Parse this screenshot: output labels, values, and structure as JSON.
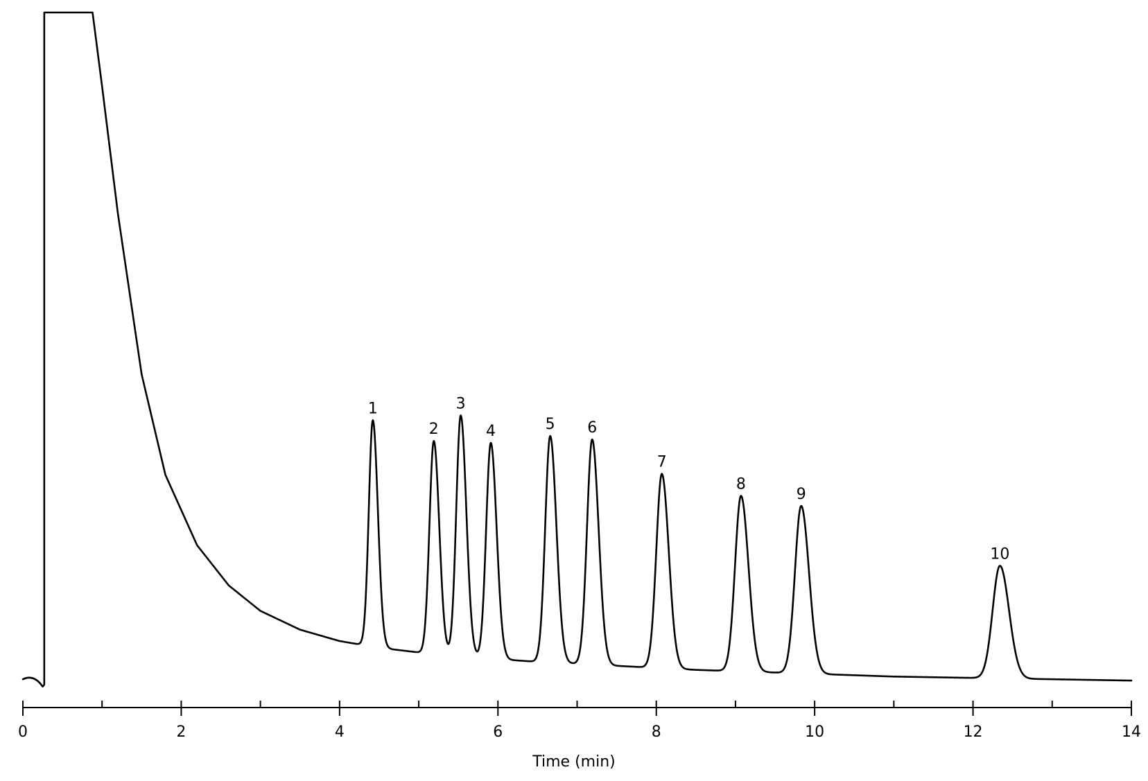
{
  "chart_data": {
    "type": "line",
    "title": "",
    "xlabel": "Time (min)",
    "ylabel": "",
    "xlim": [
      0,
      14
    ],
    "ylim": [
      0,
      100
    ],
    "grid": false,
    "legend": "none",
    "x_ticks_major": [
      0,
      2,
      4,
      6,
      8,
      10,
      12,
      14
    ],
    "x_tick_labels": [
      "0",
      "2",
      "4",
      "6",
      "8",
      "10",
      "12",
      "14"
    ],
    "x_ticks_minor": [
      1,
      3,
      5,
      7,
      9,
      11,
      13
    ],
    "line_color": "#000000",
    "solvent_front": {
      "start": 0.27,
      "plateau_end": 0.88,
      "top": 100
    },
    "baseline": {
      "x": [
        0.88,
        1.0,
        1.2,
        1.5,
        1.8,
        2.2,
        2.6,
        3.0,
        3.5,
        4.0,
        4.5,
        5.0,
        5.5,
        6.0,
        6.5,
        7.0,
        7.5,
        8.0,
        8.5,
        9.0,
        9.5,
        10.0,
        10.5,
        11.0,
        11.5,
        12.0,
        12.5,
        13.0,
        13.5,
        14.0
      ],
      "y": [
        100,
        89,
        70,
        46,
        31,
        20.5,
        14.5,
        10.7,
        7.9,
        6.2,
        5.2,
        4.5,
        3.9,
        3.5,
        3.1,
        2.8,
        2.5,
        2.2,
        1.9,
        1.7,
        1.5,
        1.3,
        1.1,
        0.9,
        0.8,
        0.7,
        0.6,
        0.5,
        0.4,
        0.3
      ]
    },
    "peaks": [
      {
        "label": "1",
        "time": 4.42,
        "height": 33.8
      },
      {
        "label": "2",
        "time": 5.19,
        "height": 31.8
      },
      {
        "label": "3",
        "time": 5.53,
        "height": 36.0
      },
      {
        "label": "4",
        "time": 5.91,
        "height": 32.2
      },
      {
        "label": "5",
        "time": 6.66,
        "height": 33.8
      },
      {
        "label": "6",
        "time": 7.19,
        "height": 33.6
      },
      {
        "label": "7",
        "time": 8.07,
        "height": 29.0
      },
      {
        "label": "8",
        "time": 9.07,
        "height": 26.2
      },
      {
        "label": "9",
        "time": 9.83,
        "height": 25.0
      },
      {
        "label": "10",
        "time": 12.34,
        "height": 16.8
      }
    ]
  }
}
